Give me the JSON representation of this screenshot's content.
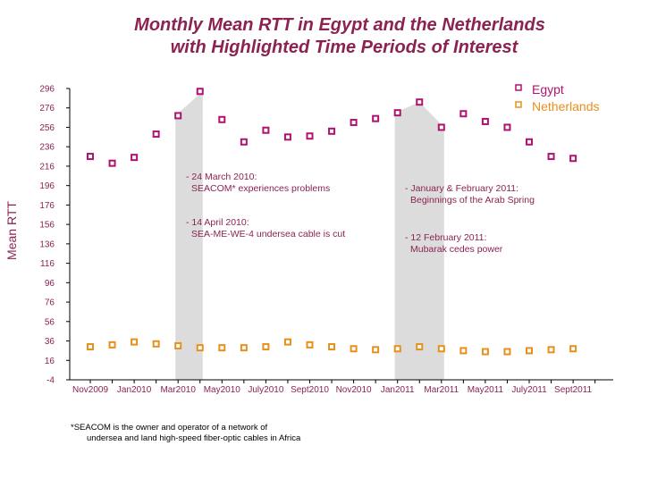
{
  "chart_data": {
    "type": "scatter",
    "title": "Monthly Mean RTT in Egypt and the Netherlands",
    "subtitle": "with Highlighted Time Periods of Interest",
    "xlabel": "",
    "ylabel": "Mean RTT",
    "ylim": [
      -4,
      296
    ],
    "y_ticks": [
      -4,
      16,
      36,
      56,
      76,
      96,
      116,
      136,
      156,
      176,
      196,
      216,
      236,
      256,
      276,
      296
    ],
    "x": [
      "Nov2009",
      "Dec2009",
      "Jan2010",
      "Feb2010",
      "Mar2010",
      "Apr2010",
      "May2010",
      "Jun2010",
      "July2010",
      "Aug2010",
      "Sept2010",
      "Oct2010",
      "Nov2010",
      "Dec2010",
      "Jan2011",
      "Feb2011",
      "Mar2011",
      "Apr2011",
      "May2011",
      "Jun2011",
      "July2011",
      "Aug2011",
      "Sept2011"
    ],
    "x_tick_labels": [
      "Nov2009",
      "Jan2010",
      "Mar2010",
      "May2010",
      "July2010",
      "Sept2010",
      "Nov2010",
      "Jan2011",
      "Mar2011",
      "May2011",
      "July2011",
      "Sept2011"
    ],
    "series": [
      {
        "name": "Egypt",
        "color": "#b0126f",
        "values": [
          226,
          219,
          225,
          249,
          268,
          293,
          264,
          241,
          253,
          246,
          247,
          252,
          261,
          265,
          271,
          282,
          256,
          270,
          262,
          256,
          241,
          226,
          224
        ]
      },
      {
        "name": "Netherlands",
        "color": "#e8901a",
        "values": [
          30,
          32,
          35,
          33,
          31,
          29,
          29,
          29,
          30,
          35,
          32,
          30,
          28,
          27,
          28,
          30,
          28,
          26,
          25,
          25,
          26,
          27,
          28
        ]
      }
    ],
    "highlight_periods": [
      {
        "start": "Mar2010",
        "end": "Apr2010"
      },
      {
        "start": "Jan2011",
        "end": "Mar2011"
      }
    ],
    "annotations": [
      {
        "lines": [
          "- 24 March 2010:",
          "SEACOM* experiences problems"
        ]
      },
      {
        "lines": [
          "- 14 April 2010:",
          "SEA-ME-WE-4 undersea cable is cut"
        ]
      },
      {
        "lines": [
          "- January & February 2011:",
          "Beginnings of the Arab Spring"
        ]
      },
      {
        "lines": [
          "- 12 February 2011:",
          "Mubarak cedes power"
        ]
      }
    ],
    "legend": {
      "position": "top-right"
    },
    "grid": false,
    "footnote": [
      "*SEACOM is the owner and operator of a network of",
      "undersea and land high-speed fiber-optic cables in Africa"
    ]
  },
  "colors": {
    "text": "#8b2252",
    "axis": "#000000",
    "highlight": "#dcdcdc"
  }
}
